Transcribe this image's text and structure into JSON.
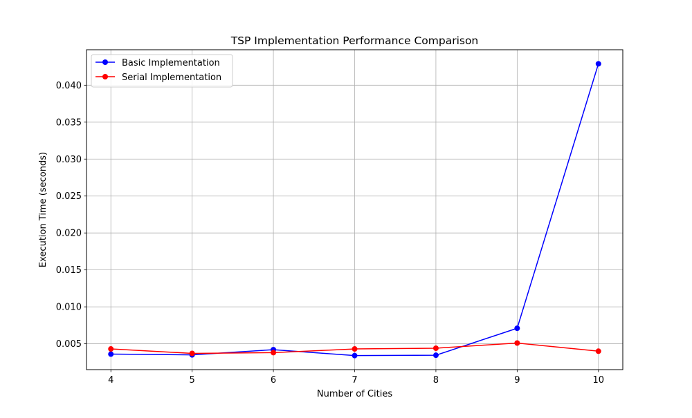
{
  "chart_data": {
    "type": "line",
    "title": "TSP Implementation Performance Comparison",
    "xlabel": "Number of Cities",
    "ylabel": "Execution Time (seconds)",
    "x": [
      4,
      5,
      6,
      7,
      8,
      9,
      10
    ],
    "x_ticks": [
      "4",
      "5",
      "6",
      "7",
      "8",
      "9",
      "10"
    ],
    "y_ticks": [
      "0.005",
      "0.010",
      "0.015",
      "0.020",
      "0.025",
      "0.030",
      "0.035",
      "0.040"
    ],
    "xlim": [
      3.7,
      10.3
    ],
    "ylim": [
      0.0015,
      0.0448
    ],
    "grid": true,
    "legend": "top-left",
    "series": [
      {
        "name": "Basic Implementation",
        "color": "#0000ff",
        "marker": "circle",
        "values": [
          0.0036,
          0.0035,
          0.0042,
          0.0034,
          0.00345,
          0.0071,
          0.0429
        ]
      },
      {
        "name": "Serial Implementation",
        "color": "#ff0000",
        "marker": "circle",
        "values": [
          0.0043,
          0.0037,
          0.0038,
          0.0043,
          0.0044,
          0.0051,
          0.004
        ]
      }
    ]
  }
}
